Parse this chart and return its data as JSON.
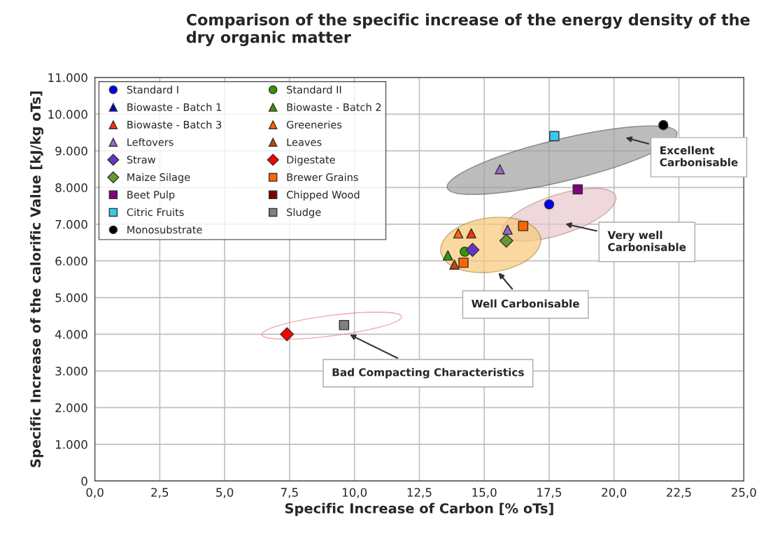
{
  "chart_data": {
    "type": "scatter",
    "title": "Comparison of the specific increase of the energy density of the dry organic matter",
    "xlabel": "Specific Increase of Carbon [% oTs]",
    "ylabel": "Specific Increase of the calorific Value [kJ/kg oTs]",
    "xlim": [
      0,
      25
    ],
    "ylim": [
      0,
      11000
    ],
    "xticks": [
      {
        "value": 0,
        "label": "0,0"
      },
      {
        "value": 2.5,
        "label": "2,5"
      },
      {
        "value": 5,
        "label": "5,0"
      },
      {
        "value": 7.5,
        "label": "7,5"
      },
      {
        "value": 10,
        "label": "10,0"
      },
      {
        "value": 12.5,
        "label": "12,5"
      },
      {
        "value": 15,
        "label": "15,0"
      },
      {
        "value": 17.5,
        "label": "17,5"
      },
      {
        "value": 20,
        "label": "20,0"
      },
      {
        "value": 22.5,
        "label": "22,5"
      },
      {
        "value": 25,
        "label": "25,0"
      }
    ],
    "yticks": [
      {
        "value": 0,
        "label": "0"
      },
      {
        "value": 1000,
        "label": "1.000"
      },
      {
        "value": 2000,
        "label": "2.000"
      },
      {
        "value": 3000,
        "label": "3.000"
      },
      {
        "value": 4000,
        "label": "4.000"
      },
      {
        "value": 5000,
        "label": "5.000"
      },
      {
        "value": 6000,
        "label": "6.000"
      },
      {
        "value": 7000,
        "label": "7.000"
      },
      {
        "value": 8000,
        "label": "8.000"
      },
      {
        "value": 9000,
        "label": "9.000"
      },
      {
        "value": 10000,
        "label": "10.000"
      },
      {
        "value": 11000,
        "label": "11.000"
      }
    ],
    "grid": true,
    "legend": "top left",
    "series": [
      {
        "name": "Standard I",
        "color": "#0000ff",
        "marker": "circle",
        "x": [
          17.5
        ],
        "values": [
          7540
        ]
      },
      {
        "name": "Standard II",
        "color": "#339900",
        "marker": "circle",
        "x": [
          14.25
        ],
        "values": [
          6250
        ]
      },
      {
        "name": "Biowaste - Batch 1",
        "color": "#0000cc",
        "marker": "triangle"
      },
      {
        "name": "Biowaste - Batch 2",
        "color": "#339900",
        "marker": "triangle",
        "x": [
          13.6
        ],
        "values": [
          6150
        ]
      },
      {
        "name": "Biowaste - Batch 3",
        "color": "#ff3300",
        "marker": "triangle",
        "x": [
          14.5
        ],
        "values": [
          6750
        ]
      },
      {
        "name": "Greeneries",
        "color": "#ff6600",
        "marker": "triangle",
        "x": [
          14.0
        ],
        "values": [
          6750
        ]
      },
      {
        "name": "Leftovers",
        "color": "#9966cc",
        "marker": "triangle",
        "x": [
          15.6,
          15.9
        ],
        "values": [
          8500,
          6850
        ]
      },
      {
        "name": "Leaves",
        "color": "#cc4400",
        "marker": "triangle",
        "x": [
          13.85
        ],
        "values": [
          5900
        ]
      },
      {
        "name": "Straw",
        "color": "#6633cc",
        "marker": "diamond",
        "x": [
          14.55
        ],
        "values": [
          6300
        ]
      },
      {
        "name": "Digestate",
        "color": "#ff0000",
        "marker": "diamond",
        "x": [
          7.4
        ],
        "values": [
          4000
        ]
      },
      {
        "name": "Maize Silage",
        "color": "#669933",
        "marker": "diamond",
        "x": [
          15.85
        ],
        "values": [
          6550
        ]
      },
      {
        "name": "Brewer Grains",
        "color": "#ff6600",
        "marker": "square",
        "x": [
          16.5,
          14.2
        ],
        "values": [
          6950,
          5950
        ]
      },
      {
        "name": "Beet Pulp",
        "color": "#800080",
        "marker": "square",
        "x": [
          18.6
        ],
        "values": [
          7950
        ]
      },
      {
        "name": "Chipped Wood",
        "color": "#800000",
        "marker": "square"
      },
      {
        "name": "Citric Fruits",
        "color": "#33ccee",
        "marker": "square",
        "x": [
          17.7
        ],
        "values": [
          9400
        ]
      },
      {
        "name": "Sludge",
        "color": "#808080",
        "marker": "square",
        "x": [
          9.6
        ],
        "values": [
          4250
        ]
      },
      {
        "name": "Monosubstrate",
        "color": "#000000",
        "marker": "circle",
        "x": [
          21.9
        ],
        "values": [
          9700
        ]
      }
    ],
    "annotations": [
      "Excellent\nCarbonisable",
      "Very well\nCarbonisable",
      "Well Carbonisable",
      "Bad Compacting Characteristics"
    ]
  }
}
